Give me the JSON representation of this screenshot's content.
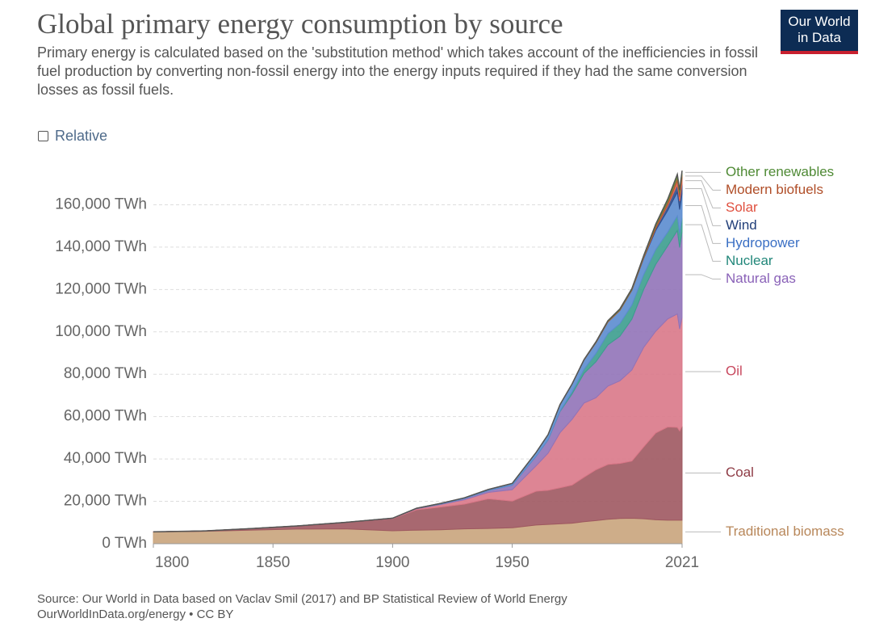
{
  "chart_data": {
    "type": "stacked_area",
    "title": "Global primary energy consumption by source",
    "subtitle": "Primary energy is calculated based on the 'substitution method' which takes account of the inefficiencies in fossil fuel production by converting non-fossil energy into the energy inputs required if they had the same conversion losses as fossil fuels.",
    "toggle_label": "Relative",
    "logo": [
      "Our World",
      "in Data"
    ],
    "source": "Source: Our World in Data based on Vaclav Smil (2017) and BP Statistical Review of World Energy",
    "url_note": "OurWorldInData.org/energy • CC BY",
    "x": [
      1800,
      1820,
      1840,
      1860,
      1880,
      1900,
      1910,
      1920,
      1930,
      1940,
      1950,
      1960,
      1965,
      1970,
      1975,
      1980,
      1985,
      1990,
      1995,
      2000,
      2005,
      2010,
      2015,
      2019,
      2020,
      2021
    ],
    "xlim": [
      1800,
      2021
    ],
    "xticks": [
      1800,
      1850,
      1900,
      1950,
      2021
    ],
    "ylim": [
      0,
      180000
    ],
    "yticks": [
      {
        "value": 0,
        "label": "0 TWh"
      },
      {
        "value": 20000,
        "label": "20,000 TWh"
      },
      {
        "value": 40000,
        "label": "40,000 TWh"
      },
      {
        "value": 60000,
        "label": "60,000 TWh"
      },
      {
        "value": 80000,
        "label": "80,000 TWh"
      },
      {
        "value": 100000,
        "label": "100,000 TWh"
      },
      {
        "value": 120000,
        "label": "120,000 TWh"
      },
      {
        "value": 140000,
        "label": "140,000 TWh"
      },
      {
        "value": 160000,
        "label": "160,000 TWh"
      }
    ],
    "grid": true,
    "series": [
      {
        "name": "Traditional biomass",
        "color": "#c9a47c",
        "label_color": "#b8875a",
        "values": [
          5556,
          5800,
          6400,
          6900,
          7000,
          6111,
          6400,
          6600,
          7000,
          7200,
          7500,
          8800,
          9100,
          9400,
          9700,
          10400,
          10900,
          11500,
          11900,
          12000,
          11800,
          11300,
          11100,
          11111,
          11111,
          11111
        ]
      },
      {
        "name": "Coal",
        "color": "#9e5860",
        "label_color": "#8e3b45",
        "values": [
          97,
          200,
          700,
          1500,
          3000,
          5700,
          9600,
          10700,
          11700,
          14000,
          12600,
          16000,
          16100,
          17000,
          18000,
          21000,
          24000,
          25900,
          26000,
          27000,
          34000,
          41000,
          44000,
          43800,
          42100,
          44500
        ]
      },
      {
        "name": "Oil",
        "color": "#d97888",
        "label_color": "#c8485e",
        "values": [
          0,
          0,
          0,
          0,
          50,
          181,
          500,
          1200,
          2000,
          3000,
          5400,
          12000,
          17500,
          26000,
          31000,
          35000,
          34000,
          37000,
          39000,
          43000,
          47000,
          48000,
          51000,
          53600,
          48100,
          51200
        ]
      },
      {
        "name": "Natural gas",
        "color": "#9173b8",
        "label_color": "#8a62b8",
        "values": [
          0,
          0,
          0,
          0,
          0,
          64,
          150,
          230,
          570,
          870,
          2100,
          4500,
          6300,
          10000,
          12000,
          14000,
          17000,
          19500,
          21000,
          24000,
          27400,
          31600,
          34500,
          39300,
          38500,
          40400
        ]
      },
      {
        "name": "Nuclear",
        "color": "#3c9d8e",
        "label_color": "#22877a",
        "values": [
          0,
          0,
          0,
          0,
          0,
          0,
          0,
          0,
          0,
          0,
          0,
          0,
          70,
          220,
          1000,
          1900,
          4000,
          5300,
          6000,
          6700,
          7000,
          7000,
          6500,
          6900,
          6600,
          6800
        ]
      },
      {
        "name": "Hydropower",
        "color": "#5b8ccf",
        "label_color": "#3a6fc4",
        "values": [
          0,
          0,
          0,
          0,
          0,
          0,
          100,
          300,
          400,
          500,
          900,
          1800,
          2400,
          3000,
          3600,
          4400,
          5000,
          5500,
          6200,
          6900,
          7600,
          9000,
          10200,
          11200,
          11300,
          11200
        ]
      },
      {
        "name": "Wind",
        "color": "#2d4d8c",
        "label_color": "#23407a",
        "values": [
          0,
          0,
          0,
          0,
          0,
          0,
          0,
          0,
          0,
          0,
          0,
          0,
          0,
          0,
          0,
          0,
          0,
          0,
          10,
          90,
          270,
          900,
          2200,
          3500,
          4000,
          4800
        ]
      },
      {
        "name": "Solar",
        "color": "#e0695a",
        "label_color": "#e0503f",
        "values": [
          0,
          0,
          0,
          0,
          0,
          0,
          0,
          0,
          0,
          0,
          0,
          0,
          0,
          0,
          0,
          0,
          0,
          0,
          0,
          0,
          10,
          90,
          660,
          1800,
          2100,
          2700
        ]
      },
      {
        "name": "Modern biofuels",
        "color": "#b5582e",
        "label_color": "#b04e28",
        "values": [
          0,
          0,
          0,
          0,
          0,
          0,
          0,
          0,
          0,
          0,
          0,
          0,
          0,
          0,
          0,
          70,
          150,
          260,
          300,
          300,
          500,
          1200,
          1400,
          1750,
          1660,
          1750
        ]
      },
      {
        "name": "Other renewables",
        "color": "#5f8f3e",
        "label_color": "#4f8a35",
        "values": [
          0,
          0,
          0,
          0,
          0,
          0,
          0,
          0,
          0,
          0,
          0,
          20,
          50,
          80,
          120,
          160,
          250,
          340,
          400,
          450,
          550,
          800,
          1100,
          1400,
          1500,
          1600
        ]
      }
    ]
  }
}
